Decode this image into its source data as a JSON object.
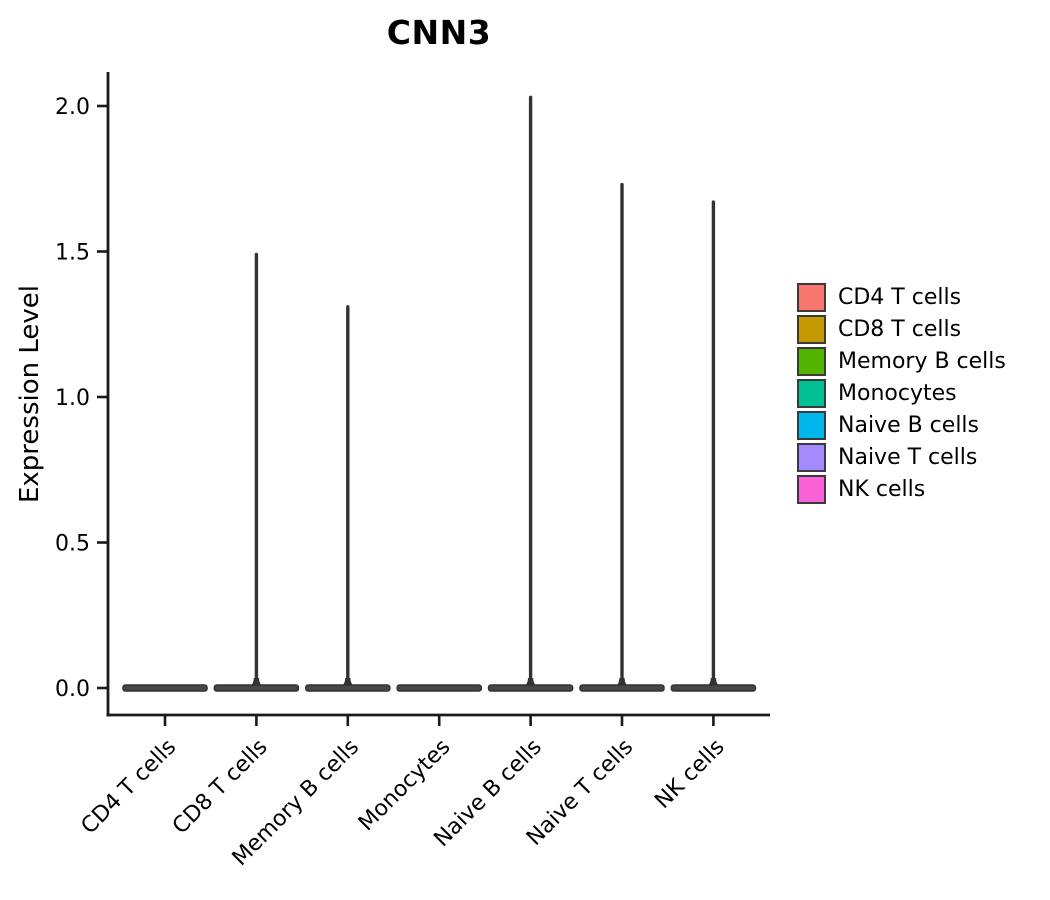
{
  "figure": {
    "title": "CNN3",
    "y_axis_label": "Expression Level"
  },
  "chart_data": {
    "type": "violin",
    "title": "CNN3",
    "xlabel": "",
    "ylabel": "Expression Level",
    "categories": [
      "CD4 T cells",
      "CD8 T cells",
      "Memory B cells",
      "Monocytes",
      "Naive B cells",
      "Naive T cells",
      "NK cells"
    ],
    "series": [
      {
        "name": "CD4 T cells",
        "color": "#F8766D",
        "bulk_at": 0.0,
        "spike_max": 0.0
      },
      {
        "name": "CD8 T cells",
        "color": "#C49A00",
        "bulk_at": 0.0,
        "spike_max": 1.49
      },
      {
        "name": "Memory B cells",
        "color": "#53B400",
        "bulk_at": 0.0,
        "spike_max": 1.31
      },
      {
        "name": "Monocytes",
        "color": "#00C094",
        "bulk_at": 0.0,
        "spike_max": 0.0
      },
      {
        "name": "Naive B cells",
        "color": "#00B6EB",
        "bulk_at": 0.0,
        "spike_max": 2.03
      },
      {
        "name": "Naive T cells",
        "color": "#A58AFF",
        "bulk_at": 0.0,
        "spike_max": 1.73
      },
      {
        "name": "NK cells",
        "color": "#FB61D7",
        "bulk_at": 0.0,
        "spike_max": 1.67
      }
    ],
    "yticks": [
      {
        "value": 0.0,
        "label": "0.0"
      },
      {
        "value": 0.5,
        "label": "0.5"
      },
      {
        "value": 1.0,
        "label": "1.0"
      },
      {
        "value": 1.5,
        "label": "1.5"
      },
      {
        "value": 2.0,
        "label": "2.0"
      }
    ],
    "ylim": [
      -0.09,
      2.12
    ],
    "grid": false,
    "legend": {
      "position": "right",
      "entries": [
        "CD4 T cells",
        "CD8 T cells",
        "Memory B cells",
        "Monocytes",
        "Naive B cells",
        "Naive T cells",
        "NK cells"
      ]
    },
    "style": {
      "violin_outline_color": "#333333",
      "violin_body_color": "#464646",
      "axis_color": "#1a1a1a",
      "text_color": "#000000",
      "background": "#ffffff"
    }
  }
}
